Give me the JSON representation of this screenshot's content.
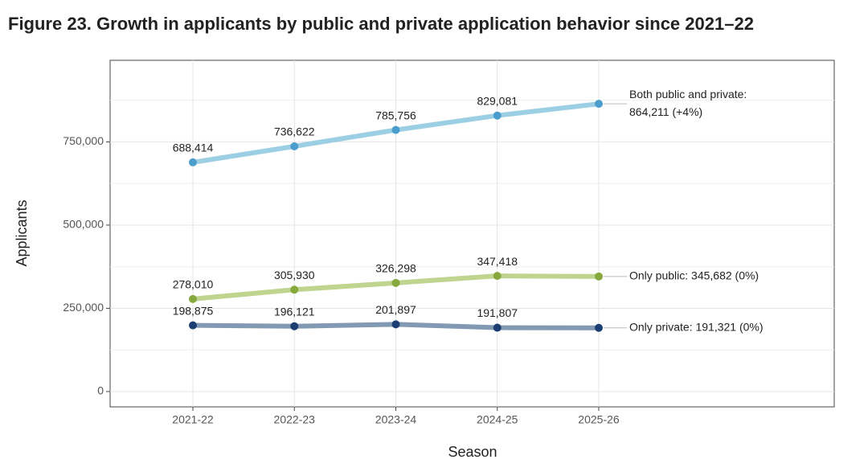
{
  "chart_data": {
    "type": "line",
    "title": "Figure 23. Growth in applicants by public and private application behavior since 2021–22",
    "x_label": "Season",
    "y_label": "Applicants",
    "categories": [
      "2021-22",
      "2022-23",
      "2023-24",
      "2024-25",
      "2025-26"
    ],
    "series": [
      {
        "name": "Both public and private",
        "color": "#9dcfe4",
        "marker_color": "#4b9dcb",
        "values": [
          688414,
          736622,
          785756,
          829081,
          864211
        ],
        "value_labels": [
          "688,414",
          "736,622",
          "785,756",
          "829,081",
          null
        ],
        "end_label": [
          "Both public and private:",
          "864,211 (+4%)"
        ]
      },
      {
        "name": "Only public",
        "color": "#bfd48e",
        "marker_color": "#87a83c",
        "values": [
          278010,
          305930,
          326298,
          347418,
          345682
        ],
        "value_labels": [
          "278,010",
          "305,930",
          "326,298",
          "347,418",
          null
        ],
        "end_label": [
          "Only public: 345,682 (0%)"
        ]
      },
      {
        "name": "Only private",
        "color": "#8199b2",
        "marker_color": "#1d3e73",
        "values": [
          198875,
          196121,
          201897,
          191807,
          191321
        ],
        "value_labels": [
          "198,875",
          "196,121",
          "201,897",
          "191,807",
          null
        ],
        "end_label": [
          "Only private: 191,321 (0%)"
        ]
      }
    ],
    "ylim": [
      -46000,
      995000
    ],
    "yticks": [
      0,
      {
        "value": 250000,
        "label": "250,000"
      },
      {
        "value": 500000,
        "label": "500,000"
      },
      {
        "value": 750000,
        "label": "750,000"
      }
    ],
    "grid": true
  }
}
